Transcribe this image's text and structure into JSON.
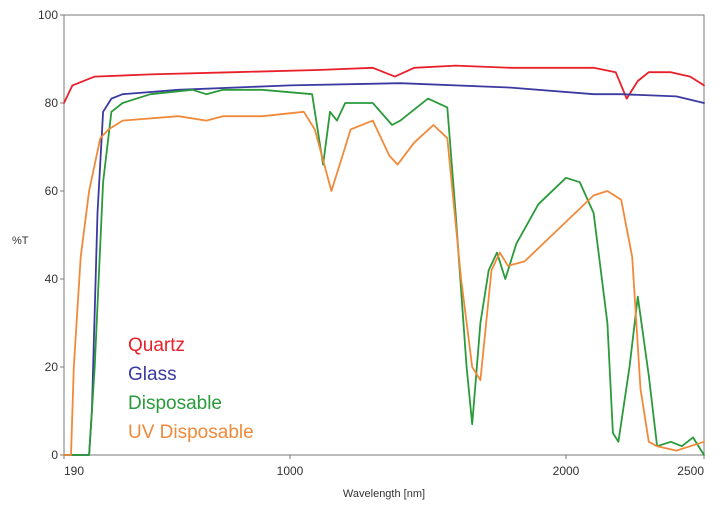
{
  "chart_data": {
    "type": "line",
    "title": "",
    "xlabel": "Wavelength [nm]",
    "ylabel": "%T",
    "x_ticks": [
      {
        "value": 190,
        "label": "190"
      },
      {
        "value": 1000,
        "label": "1000"
      },
      {
        "value": 2000,
        "label": "2000"
      },
      {
        "value": 2500,
        "label": "2500"
      }
    ],
    "y_ticks": [
      0,
      20,
      40,
      60,
      80,
      100
    ],
    "xlim": [
      190,
      2500
    ],
    "ylim": [
      0,
      100
    ],
    "grid": false,
    "legend_position": "lower-left",
    "series": [
      {
        "name": "Quartz",
        "color": "#e8202a",
        "points": [
          [
            190,
            80
          ],
          [
            220,
            84
          ],
          [
            300,
            86
          ],
          [
            500,
            86.5
          ],
          [
            800,
            87
          ],
          [
            1100,
            87.5
          ],
          [
            1300,
            88
          ],
          [
            1380,
            86
          ],
          [
            1450,
            88
          ],
          [
            1600,
            88.5
          ],
          [
            1800,
            88
          ],
          [
            2100,
            88
          ],
          [
            2180,
            87
          ],
          [
            2220,
            81
          ],
          [
            2260,
            85
          ],
          [
            2300,
            87
          ],
          [
            2380,
            87
          ],
          [
            2450,
            86
          ],
          [
            2500,
            84
          ]
        ]
      },
      {
        "name": "Glass",
        "color": "#3a3aa0",
        "points": [
          [
            190,
            0
          ],
          [
            280,
            0
          ],
          [
            290,
            10
          ],
          [
            310,
            55
          ],
          [
            330,
            78
          ],
          [
            360,
            81
          ],
          [
            400,
            82
          ],
          [
            600,
            83
          ],
          [
            1000,
            84
          ],
          [
            1400,
            84.5
          ],
          [
            1800,
            83.5
          ],
          [
            2100,
            82
          ],
          [
            2200,
            82
          ],
          [
            2400,
            81.5
          ],
          [
            2500,
            80
          ]
        ]
      },
      {
        "name": "Disposable",
        "color": "#2a9a3a",
        "points": [
          [
            190,
            0
          ],
          [
            280,
            0
          ],
          [
            300,
            20
          ],
          [
            330,
            62
          ],
          [
            360,
            78
          ],
          [
            400,
            80
          ],
          [
            500,
            82
          ],
          [
            650,
            83
          ],
          [
            700,
            82
          ],
          [
            760,
            83
          ],
          [
            900,
            83
          ],
          [
            1080,
            82
          ],
          [
            1120,
            66
          ],
          [
            1145,
            78
          ],
          [
            1170,
            76
          ],
          [
            1200,
            80
          ],
          [
            1300,
            80
          ],
          [
            1370,
            75
          ],
          [
            1400,
            76
          ],
          [
            1500,
            81
          ],
          [
            1570,
            79
          ],
          [
            1600,
            55
          ],
          [
            1640,
            20
          ],
          [
            1660,
            7
          ],
          [
            1690,
            30
          ],
          [
            1720,
            42
          ],
          [
            1750,
            46
          ],
          [
            1780,
            40
          ],
          [
            1820,
            48
          ],
          [
            1900,
            57
          ],
          [
            2000,
            63
          ],
          [
            2050,
            62
          ],
          [
            2100,
            55
          ],
          [
            2150,
            30
          ],
          [
            2170,
            5
          ],
          [
            2190,
            3
          ],
          [
            2230,
            20
          ],
          [
            2260,
            36
          ],
          [
            2300,
            18
          ],
          [
            2330,
            2
          ],
          [
            2380,
            3
          ],
          [
            2420,
            2
          ],
          [
            2460,
            4
          ],
          [
            2500,
            0
          ]
        ]
      },
      {
        "name": "UV Disposable",
        "color": "#f08a3a",
        "points": [
          [
            190,
            0
          ],
          [
            215,
            0
          ],
          [
            225,
            20
          ],
          [
            250,
            45
          ],
          [
            280,
            60
          ],
          [
            320,
            72
          ],
          [
            350,
            74
          ],
          [
            400,
            76
          ],
          [
            600,
            77
          ],
          [
            700,
            76
          ],
          [
            760,
            77
          ],
          [
            900,
            77
          ],
          [
            1050,
            78
          ],
          [
            1090,
            74
          ],
          [
            1150,
            60
          ],
          [
            1180,
            66
          ],
          [
            1220,
            74
          ],
          [
            1300,
            76
          ],
          [
            1360,
            68
          ],
          [
            1390,
            66
          ],
          [
            1450,
            71
          ],
          [
            1520,
            75
          ],
          [
            1570,
            72
          ],
          [
            1620,
            40
          ],
          [
            1660,
            20
          ],
          [
            1690,
            17
          ],
          [
            1730,
            42
          ],
          [
            1760,
            46
          ],
          [
            1790,
            43
          ],
          [
            1850,
            44
          ],
          [
            1950,
            50
          ],
          [
            2050,
            56
          ],
          [
            2100,
            59
          ],
          [
            2150,
            60
          ],
          [
            2200,
            58
          ],
          [
            2240,
            45
          ],
          [
            2270,
            15
          ],
          [
            2300,
            3
          ],
          [
            2330,
            2
          ],
          [
            2400,
            1
          ],
          [
            2450,
            2
          ],
          [
            2500,
            3
          ]
        ]
      }
    ]
  }
}
